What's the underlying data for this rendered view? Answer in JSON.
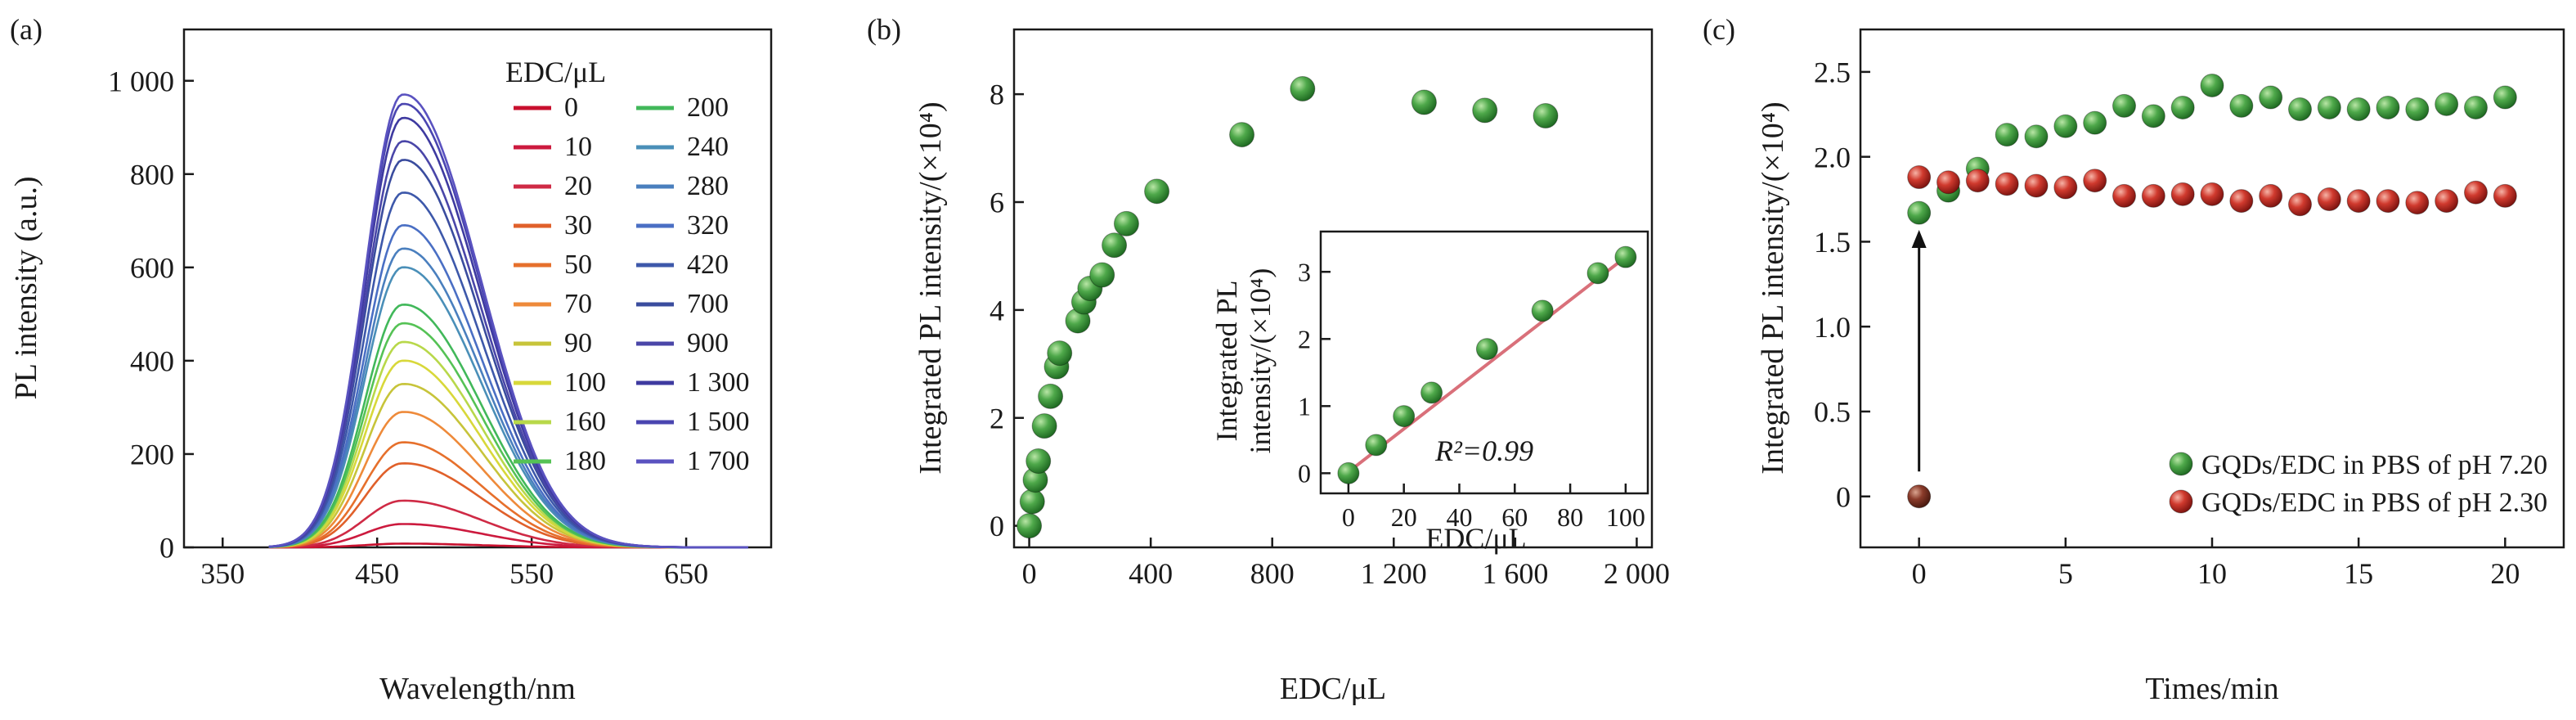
{
  "colors": {
    "axis": "#1a1a1a",
    "green_marker": "#3f9a3f",
    "red_marker": "#c42a2a",
    "brown_marker": "#8a3b2a",
    "fit_line": "#d9707a"
  },
  "panels": {
    "a": {
      "label": "(a)"
    },
    "b": {
      "label": "(b)"
    },
    "c": {
      "label": "(c)"
    }
  },
  "chart_data": [
    {
      "panel": "a",
      "type": "line",
      "xlabel": "Wavelength/nm",
      "ylabel": "PL intensity (a.u.)",
      "xlim": [
        325,
        705
      ],
      "ylim": [
        0,
        1110
      ],
      "xticks": [
        350,
        450,
        550,
        650
      ],
      "xtick_labels": [
        "350",
        "450",
        "550",
        "650"
      ],
      "yticks": [
        0,
        200,
        400,
        600,
        800,
        1000
      ],
      "ytick_labels": [
        "0",
        "200",
        "400",
        "600",
        "800",
        "1 000"
      ],
      "legend_title": "EDC/μL",
      "legend_position": "top-right",
      "peak_wavelength": 466,
      "series": [
        {
          "name": "0",
          "peak": 8,
          "color": "#c8102e"
        },
        {
          "name": "10",
          "peak": 50,
          "color": "#cc1a3e"
        },
        {
          "name": "20",
          "peak": 100,
          "color": "#cf2a45"
        },
        {
          "name": "30",
          "peak": 180,
          "color": "#e0602a"
        },
        {
          "name": "50",
          "peak": 225,
          "color": "#e6702c"
        },
        {
          "name": "70",
          "peak": 290,
          "color": "#ee8a3a"
        },
        {
          "name": "90",
          "peak": 350,
          "color": "#c7c43a"
        },
        {
          "name": "100",
          "peak": 400,
          "color": "#d8d83a"
        },
        {
          "name": "160",
          "peak": 440,
          "color": "#b8d84a"
        },
        {
          "name": "180",
          "peak": 480,
          "color": "#55c255"
        },
        {
          "name": "200",
          "peak": 520,
          "color": "#41b85a"
        },
        {
          "name": "240",
          "peak": 600,
          "color": "#4a8fb8"
        },
        {
          "name": "280",
          "peak": 640,
          "color": "#4a7fbe"
        },
        {
          "name": "320",
          "peak": 690,
          "color": "#4a6fc4"
        },
        {
          "name": "420",
          "peak": 760,
          "color": "#3d58aa"
        },
        {
          "name": "700",
          "peak": 830,
          "color": "#3a4c9e"
        },
        {
          "name": "900",
          "peak": 870,
          "color": "#4a46a8"
        },
        {
          "name": "1 300",
          "peak": 920,
          "color": "#3e3aa0"
        },
        {
          "name": "1 500",
          "peak": 950,
          "color": "#4a45b0"
        },
        {
          "name": "1 700",
          "peak": 970,
          "color": "#5a52c0"
        }
      ]
    },
    {
      "panel": "b",
      "type": "scatter",
      "xlabel": "EDC/μL",
      "ylabel": "Integrated PL intensity/(×10⁴)",
      "xlim": [
        -50,
        2050
      ],
      "ylim": [
        -0.4,
        9.2
      ],
      "xticks": [
        0,
        400,
        800,
        1200,
        1600,
        2000
      ],
      "xtick_labels": [
        "0",
        "400",
        "800",
        "1 200",
        "1 600",
        "2 000"
      ],
      "yticks": [
        0,
        2,
        4,
        6,
        8
      ],
      "ytick_labels": [
        "0",
        "2",
        "4",
        "6",
        "8"
      ],
      "points": [
        [
          0,
          0.0
        ],
        [
          10,
          0.45
        ],
        [
          20,
          0.85
        ],
        [
          30,
          1.2
        ],
        [
          50,
          1.85
        ],
        [
          70,
          2.4
        ],
        [
          90,
          2.95
        ],
        [
          100,
          3.2
        ],
        [
          160,
          3.8
        ],
        [
          180,
          4.15
        ],
        [
          200,
          4.4
        ],
        [
          240,
          4.65
        ],
        [
          280,
          5.2
        ],
        [
          320,
          5.6
        ],
        [
          420,
          6.2
        ],
        [
          700,
          7.25
        ],
        [
          900,
          8.1
        ],
        [
          1300,
          7.85
        ],
        [
          1500,
          7.7
        ],
        [
          1700,
          7.6
        ]
      ],
      "inset": {
        "type": "scatter",
        "xlabel": "EDC/μL",
        "ylabel_line1": "Integrated PL",
        "ylabel_line2": "intensity/(×10⁴)",
        "xlim": [
          -10,
          108
        ],
        "ylim": [
          -0.3,
          3.6
        ],
        "xticks": [
          0,
          20,
          40,
          60,
          80,
          100
        ],
        "xtick_labels": [
          "0",
          "20",
          "40",
          "60",
          "80",
          "100"
        ],
        "yticks": [
          0,
          1,
          2,
          3
        ],
        "ytick_labels": [
          "0",
          "1",
          "2",
          "3"
        ],
        "annotation": "R²=0.99",
        "points": [
          [
            0,
            0.0
          ],
          [
            10,
            0.42
          ],
          [
            20,
            0.85
          ],
          [
            30,
            1.2
          ],
          [
            50,
            1.85
          ],
          [
            70,
            2.42
          ],
          [
            90,
            2.98
          ],
          [
            100,
            3.22
          ]
        ],
        "fit_line": [
          [
            0,
            0.02
          ],
          [
            100,
            3.22
          ]
        ]
      }
    },
    {
      "panel": "c",
      "type": "scatter",
      "xlabel": "Times/min",
      "ylabel": "Integrated PL intensity/(×10⁴)",
      "xlim": [
        -2,
        22
      ],
      "ylim": [
        -0.3,
        2.75
      ],
      "xticks": [
        0,
        5,
        10,
        15,
        20
      ],
      "xtick_labels": [
        "0",
        "5",
        "10",
        "15",
        "20"
      ],
      "yticks": [
        0,
        0.5,
        1.0,
        1.5,
        2.0,
        2.5
      ],
      "ytick_labels": [
        "0",
        "0.5",
        "1.0",
        "1.5",
        "2.0",
        "2.5"
      ],
      "legend_position": "bottom-right",
      "series": [
        {
          "name": "GQDs/EDC in PBS of pH 7.20",
          "color": "#3f9a3f",
          "x": [
            0,
            1,
            2,
            3,
            4,
            5,
            6,
            7,
            8,
            9,
            10,
            11,
            12,
            13,
            14,
            15,
            16,
            17,
            18,
            19,
            20
          ],
          "y": [
            1.67,
            1.8,
            1.93,
            2.13,
            2.12,
            2.18,
            2.2,
            2.3,
            2.24,
            2.29,
            2.42,
            2.3,
            2.35,
            2.28,
            2.29,
            2.28,
            2.29,
            2.28,
            2.31,
            2.29,
            2.35
          ]
        },
        {
          "name": "GQDs/EDC in PBS of pH 2.30",
          "color": "#c42a2a",
          "x": [
            0,
            1,
            2,
            3,
            4,
            5,
            6,
            7,
            8,
            9,
            10,
            11,
            12,
            13,
            14,
            15,
            16,
            17,
            18,
            19,
            20
          ],
          "y": [
            1.88,
            1.85,
            1.86,
            1.84,
            1.83,
            1.82,
            1.86,
            1.77,
            1.77,
            1.78,
            1.78,
            1.74,
            1.77,
            1.72,
            1.75,
            1.74,
            1.74,
            1.73,
            1.74,
            1.79,
            1.77
          ]
        }
      ],
      "extra_point": {
        "x": 0,
        "y": 0,
        "color": "#8a3b2a"
      },
      "arrow": {
        "from": [
          0,
          0.06
        ],
        "to": [
          0,
          1.55
        ]
      }
    }
  ]
}
